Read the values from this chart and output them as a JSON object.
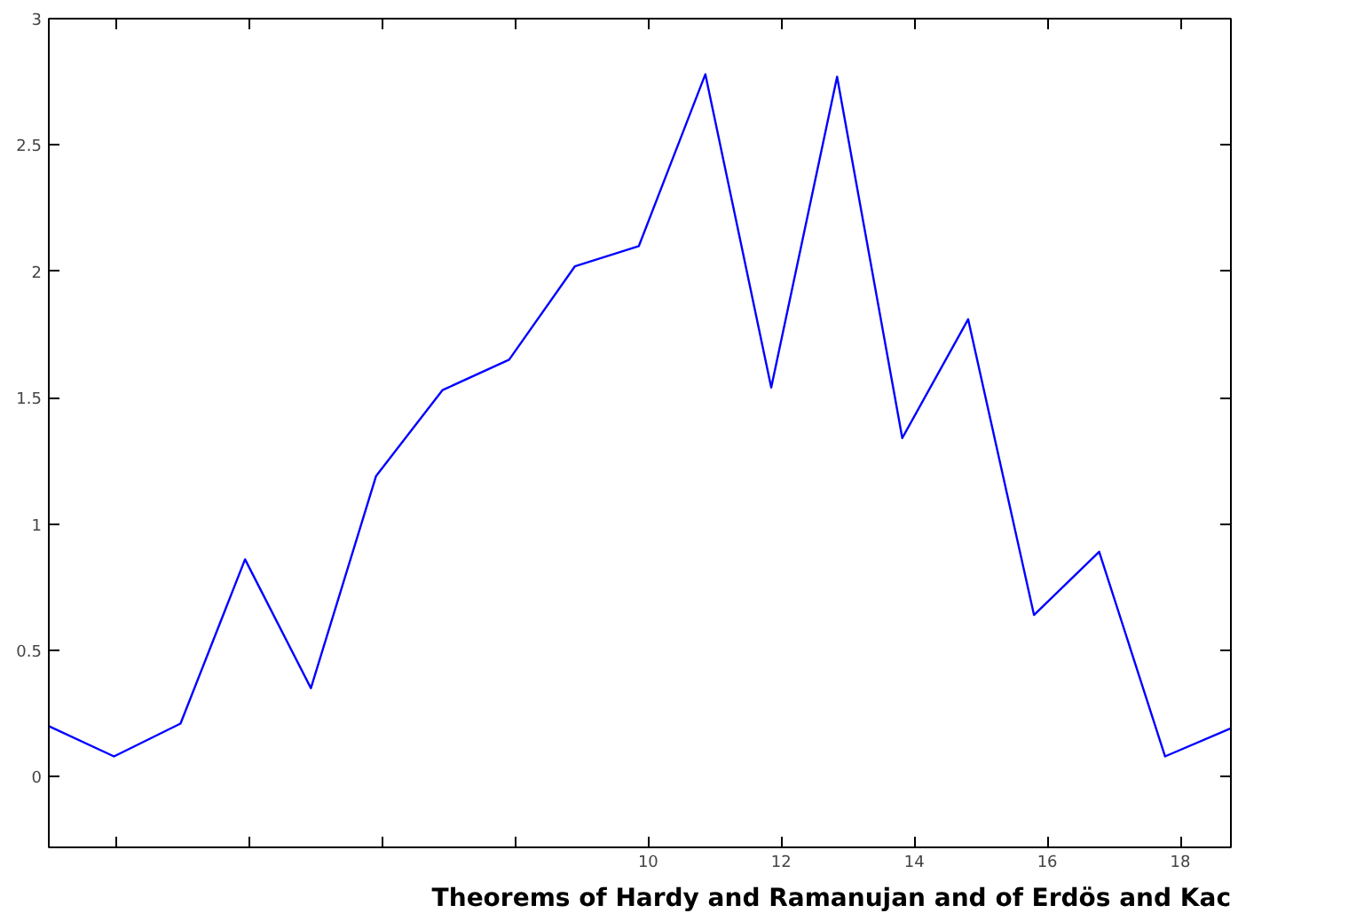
{
  "chart_data": {
    "type": "line",
    "title": "Theorems of Hardy and Ramanujan and of Erdös and Kac",
    "x": [
      0.99,
      1.97,
      2.97,
      3.94,
      4.93,
      5.91,
      6.91,
      7.91,
      8.9,
      9.86,
      10.86,
      11.85,
      12.84,
      13.82,
      14.81,
      15.8,
      16.78,
      17.77,
      18.75
    ],
    "series": [
      {
        "color": "#0000ff",
        "values": [
          0.2,
          0.08,
          0.21,
          0.86,
          0.35,
          1.19,
          1.53,
          1.65,
          2.02,
          2.1,
          2.78,
          1.54,
          2.77,
          1.34,
          1.81,
          0.64,
          0.89,
          0.08,
          0.19
        ]
      }
    ],
    "xlim": [
      0.99,
      18.76
    ],
    "ylim": [
      -0.28,
      3
    ],
    "xticks": [
      {
        "value": 2,
        "label": null
      },
      {
        "value": 4,
        "label": null
      },
      {
        "value": 6,
        "label": null
      },
      {
        "value": 8,
        "label": null
      },
      10,
      12,
      14,
      16,
      18
    ],
    "yticks": [
      0,
      0.5,
      1,
      1.5,
      2,
      2.5,
      3
    ],
    "grid": false,
    "marker": "none",
    "line_style": "solid"
  }
}
